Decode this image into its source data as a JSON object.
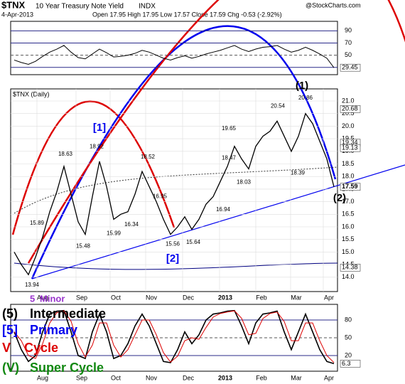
{
  "chart_data": {
    "type": "line",
    "symbol": "$TNX",
    "title": "10 Year Treasury Note Yield",
    "exchange": "INDX",
    "date": "4-Apr-2013",
    "quote": "Open 17.95  High 17.95  Low 17.57  Close 17.59  Chg -0.53 (-2.92%)",
    "source": "@StockCharts.com",
    "panel_label": "$TNX (Daily)",
    "x_labels": [
      "Aug",
      "Sep",
      "Oct",
      "Nov",
      "Dec",
      "2013",
      "Feb",
      "Mar",
      "Apr"
    ],
    "series": [
      {
        "name": "$TNX",
        "color": "#000000",
        "values": [
          15.0,
          14.5,
          14.1,
          14.8,
          15.6,
          16.6,
          17.4,
          18.4,
          17.3,
          16.2,
          15.7,
          17.2,
          18.6,
          17.6,
          16.3,
          16.5,
          16.6,
          17.3,
          18.2,
          17.6,
          17.0,
          16.3,
          15.7,
          16.0,
          16.4,
          15.9,
          16.3,
          16.9,
          17.2,
          17.8,
          18.4,
          19.2,
          18.7,
          18.3,
          19.2,
          19.6,
          19.8,
          20.2,
          19.6,
          19.0,
          19.6,
          20.5,
          20.1,
          19.4,
          18.7,
          17.59
        ]
      }
    ],
    "ylim": [
      13.43,
      21.48
    ],
    "yticks": [
      {
        "value": 14,
        "label": "14.0"
      },
      {
        "value": 14.5,
        "label": "14.5"
      },
      {
        "value": 15,
        "label": "15.0"
      },
      {
        "value": 15.5,
        "label": "15.5"
      },
      {
        "value": 16,
        "label": "16.0"
      },
      {
        "value": 16.5,
        "label": "16.5"
      },
      {
        "value": 17,
        "label": "17.0"
      },
      {
        "value": 17.5,
        "label": "17.5"
      },
      {
        "value": 18,
        "label": "18.0"
      },
      {
        "value": 18.5,
        "label": "18.5"
      },
      {
        "value": 19,
        "label": "19.0"
      },
      {
        "value": 19.5,
        "label": "19.5"
      },
      {
        "value": 20,
        "label": "20.0"
      },
      {
        "value": 20.5,
        "label": "20.5"
      },
      {
        "value": 21,
        "label": "21.0"
      }
    ],
    "price_labels": [
      13.94,
      15.89,
      18.63,
      15.48,
      18.92,
      15.99,
      16.34,
      18.52,
      16.95,
      15.56,
      15.64,
      16.94,
      18.47,
      19.65,
      18.03,
      20.54,
      18.39,
      20.86
    ],
    "indicator_values": [
      20.68,
      19.34,
      19.13,
      17.59,
      14.38
    ],
    "wave_labels": [
      "[1]",
      "[2]",
      "(1)",
      "(2)"
    ],
    "rsi": {
      "values": [
        42,
        38,
        35,
        40,
        48,
        55,
        60,
        66,
        55,
        46,
        44,
        52,
        60,
        54,
        47,
        48,
        50,
        53,
        58,
        55,
        50,
        45,
        42,
        46,
        49,
        45,
        48,
        52,
        55,
        58,
        62,
        66,
        60,
        56,
        60,
        63,
        64,
        66,
        60,
        55,
        58,
        63,
        58,
        52,
        45,
        29.45
      ],
      "ylim": [
        18,
        105.6
      ],
      "yticks": [
        90,
        70,
        50,
        30
      ]
    },
    "stoch": {
      "values": [
        60,
        30,
        10,
        20,
        60,
        90,
        95,
        96,
        60,
        20,
        15,
        60,
        90,
        60,
        15,
        20,
        40,
        70,
        90,
        70,
        40,
        10,
        8,
        30,
        60,
        40,
        55,
        80,
        90,
        92,
        95,
        96,
        70,
        40,
        75,
        90,
        92,
        95,
        60,
        30,
        60,
        90,
        60,
        30,
        10,
        6.3
      ],
      "ylim": [
        -6.4,
        106.4
      ],
      "yticks": [
        80,
        50,
        20
      ]
    },
    "legend": [
      {
        "mark": "5",
        "label": "Minor",
        "color": "#9933cc"
      },
      {
        "mark": "(5)",
        "label": "Intermediate",
        "color": "#000000"
      },
      {
        "mark": "[5]",
        "label": "Primary",
        "color": "#0000ee"
      },
      {
        "mark": "V",
        "label": "Cycle",
        "color": "#dd0000"
      },
      {
        "mark": "(V)",
        "label": "Super Cycle",
        "color": "#118811"
      }
    ]
  }
}
